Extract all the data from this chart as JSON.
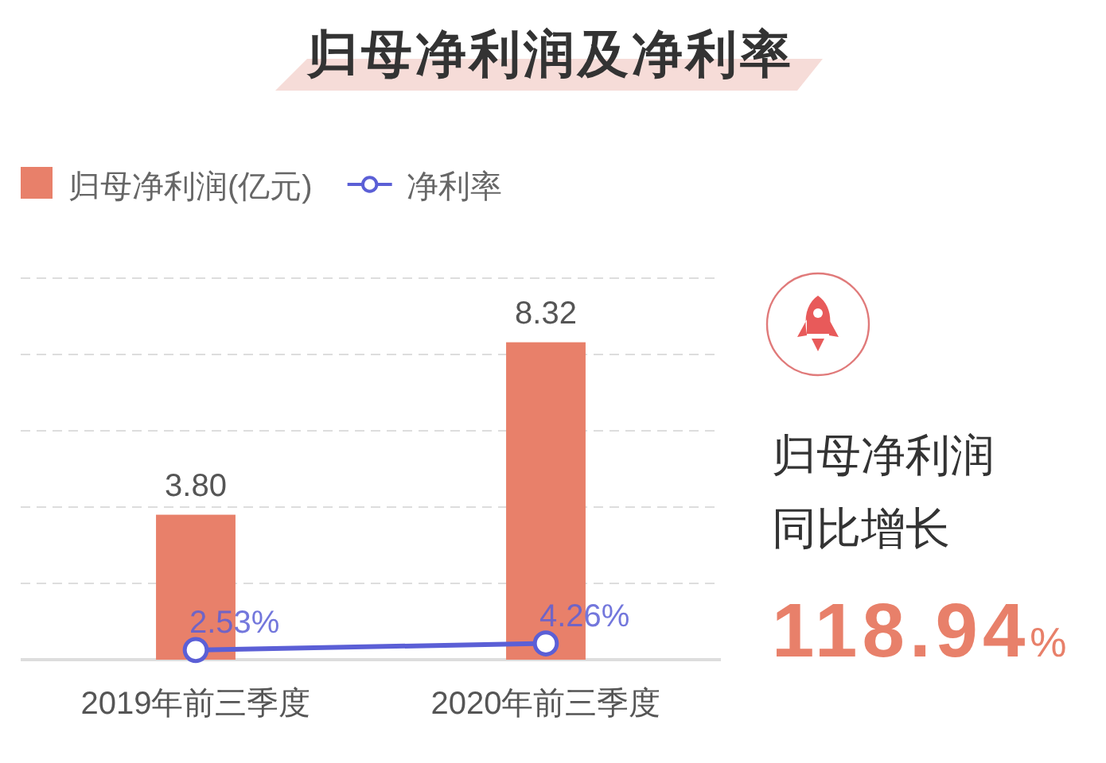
{
  "chart_data": {
    "type": "bar",
    "title": "归母净利润及净利率",
    "categories": [
      "2019年前三季度",
      "2020年前三季度"
    ],
    "series": [
      {
        "name": "归母净利润(亿元)",
        "color": "#e8806a",
        "values": [
          3.8,
          8.32
        ],
        "value_labels": [
          "3.80",
          "8.32"
        ]
      },
      {
        "name": "净利率",
        "type": "line",
        "axis": "y2",
        "color": "#5b5fd6",
        "values": [
          2.53,
          4.26
        ],
        "value_labels": [
          "2.53%",
          "4.26%"
        ]
      }
    ],
    "ylim": [
      0,
      10
    ],
    "yticks": [
      {
        "value": 0,
        "label": null
      },
      {
        "value": 2,
        "label": null
      },
      {
        "value": 4,
        "label": null
      },
      {
        "value": 6,
        "label": null
      },
      {
        "value": 8,
        "label": null
      },
      {
        "value": 10,
        "label": null
      }
    ],
    "y2lim": [
      0,
      100
    ],
    "grid": "y",
    "legend": "top left",
    "tick_labels": "x",
    "marker": "circle",
    "annotations": [
      "归母净利润",
      "同比增长",
      "118.94%"
    ]
  }
}
